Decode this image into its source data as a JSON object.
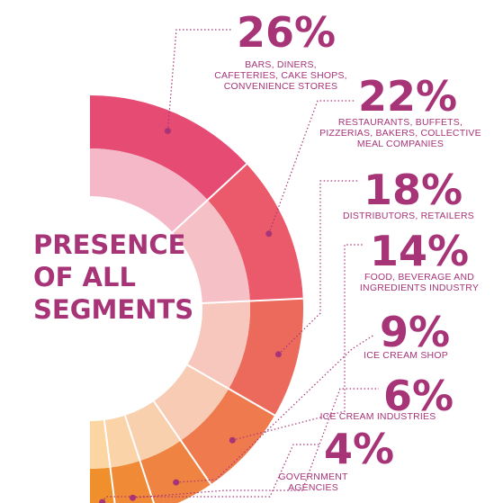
{
  "chart_data": {
    "type": "pie",
    "title": "PRESENCE OF ALL SEGMENTS",
    "title_lines": [
      "PRESENCE",
      "OF ALL",
      "SEGMENTS"
    ],
    "unit": "%",
    "series": [
      {
        "value": 26,
        "label": "26%",
        "desc": [
          "BARS, DINERS,",
          "CAFETERIES, CAKE SHOPS,",
          "CONVENIENCE STORES"
        ],
        "outer_color": "#e64b74",
        "inner_color": "#f4b8c8"
      },
      {
        "value": 22,
        "label": "22%",
        "desc": [
          "RESTAURANTS, BUFFETS,",
          "PIZZERIAS, BAKERS, COLLECTIVE",
          "MEAL COMPANIES"
        ],
        "outer_color": "#ea5a6a",
        "inner_color": "#f6c1c6"
      },
      {
        "value": 18,
        "label": "18%",
        "desc": [
          "DISTRIBUTORS, RETAILERS"
        ],
        "outer_color": "#ec6a5c",
        "inner_color": "#f7c7bd"
      },
      {
        "value": 14,
        "label": "14%",
        "desc": [
          "FOOD, BEVERAGE AND",
          "INGREDIENTS INDUSTRY"
        ],
        "outer_color": "#ee7a4e",
        "inner_color": "#f8ccb4"
      },
      {
        "value": 9,
        "label": "9%",
        "desc": [
          "ICE CREAM SHOP"
        ],
        "outer_color": "#ef8342",
        "inner_color": "#f9d0ad"
      },
      {
        "value": 6,
        "label": "6%",
        "desc": [
          "ICE CREAM INDUSTRIES"
        ],
        "outer_color": "#f08a36",
        "inner_color": "#fad3a8"
      },
      {
        "value": 4,
        "label": "4%",
        "desc": [
          "GOVERNMENT",
          "AGENCIES"
        ],
        "outer_color": "#f0902c",
        "inner_color": "#fbd6a3"
      }
    ]
  },
  "colors": {
    "text": "#a83478",
    "leader": "#a83478"
  }
}
